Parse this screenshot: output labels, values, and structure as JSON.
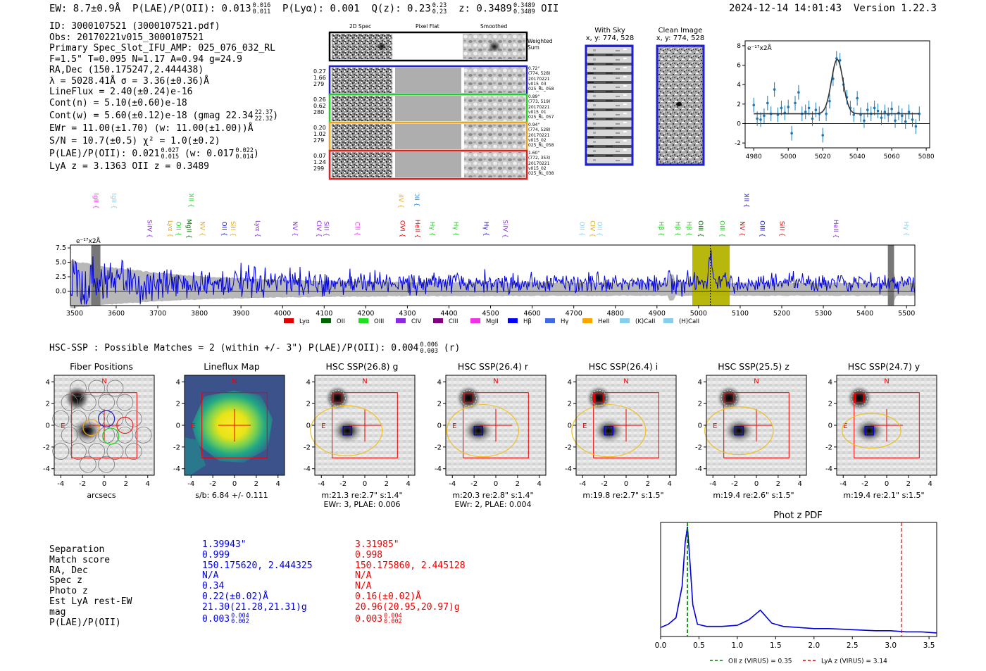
{
  "header": {
    "ew": "EW: 8.7±0.9Å",
    "plae_label": "P(LAE)/P(OII): 0.013",
    "plae_hi": "0.016",
    "plae_lo": "0.011",
    "plya": "P(Lyα): 0.001",
    "qz_label": "Q(z): 0.23",
    "qz_hi": "0.23",
    "qz_lo": "0.23",
    "z_label": "z: 0.3489",
    "z_hi": "0.3489",
    "z_lo": "0.3489",
    "z_line": "OII",
    "timestamp": "2024-12-14 14:01:43",
    "version": "Version 1.22.3"
  },
  "info": {
    "lines": [
      "ID: 3000107521 (3000107521.pdf)",
      "Obs: 20170221v015_3000107521",
      "Primary Spec_Slot_IFU_AMP: 025_076_032_RL",
      "F=1.5\"  T=0.095  N=1.17  A=0.94  g=24.9",
      "RA,Dec (150.175247,2.444438)",
      "λ = 5028.41Å  σ = 3.36(±0.36)Å",
      "LineFlux = 2.40(±0.24)e-16",
      "Cont(n) = 5.10(±0.60)e-18"
    ],
    "contw": "Cont(w) = 5.60(±0.12)e-18 (gmag 22.34",
    "contw_hi": "22.37",
    "contw_lo": "22.32",
    "ewr": "EWr = 11.00(±1.70) (w: 11.00(±1.00))Å",
    "sn": "S/N = 10.7(±0.5)  χ² = 1.0(±0.2)",
    "plae": "P(LAE)/P(OII): 0.021",
    "plae_hi": "0.027",
    "plae_lo": "0.015",
    "plae_w": "(w: 0.017",
    "plae_w_hi": "0.022",
    "plae_w_lo": "0.014",
    "lya": "LyA z = 3.1363  OII z = 0.3489"
  },
  "cutouts": {
    "col_titles": [
      "2D Spec",
      "Pixel Flat",
      "Smoothed"
    ],
    "weighted_sum": "Weighted Sum",
    "rows": [
      {
        "left": [
          "0.27",
          "1.66",
          "279"
        ],
        "right": [
          "0.72\"",
          "(774, 528)",
          "20170221",
          "v015_03",
          "025_RL_058"
        ],
        "color": "#1f1fd0"
      },
      {
        "left": [
          "0.26",
          "0.62",
          "280"
        ],
        "right": [
          "0.89\"",
          "(773, 519)",
          "20170221",
          "v015_01",
          "025_RL_057"
        ],
        "color": "#22cc22"
      },
      {
        "left": [
          "0.20",
          "1.02",
          "279"
        ],
        "right": [
          "0.94\"",
          "(774, 528)",
          "20170221",
          "v015_02",
          "025_RL_058"
        ],
        "color": "#f0a020"
      },
      {
        "left": [
          "0.07",
          "1.24",
          "299"
        ],
        "right": [
          "1.60\"",
          "(772, 353)",
          "20170221",
          "v015_02",
          "025_RL_038"
        ],
        "color": "#e02020"
      }
    ],
    "with_sky": "With Sky",
    "with_sky_xy": "x, y: 774, 528",
    "clean": "Clean Image",
    "clean_xy": "x, y: 774, 528"
  },
  "line_fit": {
    "unit": "e⁻¹⁷x2Å",
    "x_ticks": [
      "4980",
      "5000",
      "5020",
      "5040",
      "5060",
      "5080"
    ],
    "y_ticks": [
      "8",
      "6",
      "4",
      "2",
      "0",
      "-2"
    ],
    "xlim": [
      4975,
      5082
    ],
    "ylim": [
      -2.5,
      8.5
    ],
    "gauss": {
      "center": 5028.4,
      "sigma": 3.36,
      "amp": 5.6,
      "base": 1.0
    },
    "points_x": [
      4980,
      4982,
      4984,
      4986,
      4988,
      4990,
      4992,
      4994,
      4996,
      4998,
      5000,
      5002,
      5004,
      5006,
      5008,
      5010,
      5012,
      5014,
      5016,
      5018,
      5020,
      5022,
      5024,
      5026,
      5028,
      5030,
      5032,
      5034,
      5036,
      5038,
      5040,
      5042,
      5044,
      5046,
      5048,
      5050,
      5052,
      5054,
      5056,
      5058,
      5060,
      5062,
      5064,
      5066,
      5068,
      5070,
      5072,
      5074,
      5076
    ],
    "points_y": [
      1.9,
      0.5,
      0.4,
      0.8,
      2.1,
      1.0,
      3.5,
      0.9,
      1.6,
      1.1,
      1.7,
      -1.0,
      2.1,
      3.2,
      1.0,
      1.2,
      1.6,
      0.5,
      1.4,
      1.0,
      -1.2,
      1.0,
      2.3,
      4.6,
      6.7,
      6.5,
      4.0,
      2.7,
      1.6,
      0.9,
      2.6,
      0.9,
      0.3,
      1.4,
      1.0,
      1.6,
      1.3,
      0.6,
      1.2,
      0.9,
      1.5,
      0.3,
      1.1,
      0.8,
      0.2,
      1.2,
      0.4,
      -0.3,
      1.0
    ]
  },
  "spectrum": {
    "unit": "e⁻¹⁷x2Å",
    "xlim": [
      3490,
      5520
    ],
    "ylim": [
      -2.5,
      8.0
    ],
    "x_ticks": [
      "3500",
      "3600",
      "3700",
      "3800",
      "3900",
      "4000",
      "4100",
      "4200",
      "4300",
      "4400",
      "4500",
      "4600",
      "4700",
      "4800",
      "4900",
      "5000",
      "5100",
      "5200",
      "5300",
      "5400",
      "5500"
    ],
    "y_ticks": [
      "7.5",
      "5.0",
      "2.5",
      "0.0"
    ],
    "highlight_range": [
      4985,
      5075
    ],
    "line_center": 5028.4,
    "line_labels": [
      {
        "t": "MgII",
        "x": 3547,
        "c": "#f032e6",
        "hi": true
      },
      {
        "t": "MgII",
        "x": 3590,
        "c": "#87ceeb",
        "hi": true
      },
      {
        "t": "SiIV",
        "x": 3675,
        "c": "#8a2be2",
        "hi": false
      },
      {
        "t": "Lyα",
        "x": 3725,
        "c": "#e6a817",
        "hi": false
      },
      {
        "t": "OII",
        "x": 3745,
        "c": "#22cc22",
        "hi": false
      },
      {
        "t": "MgII",
        "x": 3770,
        "c": "#006400",
        "hi": false
      },
      {
        "t": "OIII",
        "x": 3775,
        "c": "#22cc22",
        "hi": true
      },
      {
        "t": "NV",
        "x": 3802,
        "c": "#e6a817",
        "hi": false
      },
      {
        "t": "OII",
        "x": 3855,
        "c": "#1010c0",
        "hi": false
      },
      {
        "t": "SiII",
        "x": 3876,
        "c": "#e6a817",
        "hi": false
      },
      {
        "t": "Lyα",
        "x": 3935,
        "c": "#8a2be2",
        "hi": false
      },
      {
        "t": "NV",
        "x": 4025,
        "c": "#8a2be2",
        "hi": false
      },
      {
        "t": "CIV",
        "x": 4083,
        "c": "#8a2be2",
        "hi": false
      },
      {
        "t": "SiII",
        "x": 4100,
        "c": "#8a2be2",
        "hi": false
      },
      {
        "t": "CII",
        "x": 4175,
        "c": "#f032e6",
        "hi": false
      },
      {
        "t": "SiIV",
        "x": 4280,
        "c": "#e6a817",
        "hi": true
      },
      {
        "t": "OVI",
        "x": 4283,
        "c": "#e00000",
        "hi": false
      },
      {
        "t": "OII",
        "x": 4318,
        "c": "#1e90ff",
        "hi": true
      },
      {
        "t": "HeII",
        "x": 4320,
        "c": "#e00000",
        "hi": false
      },
      {
        "t": "Hγ",
        "x": 4355,
        "c": "#22cc22",
        "hi": false
      },
      {
        "t": "Hγ",
        "x": 4412,
        "c": "#22cc22",
        "hi": false
      },
      {
        "t": "Hγ",
        "x": 4485,
        "c": "#1010c0",
        "hi": false
      },
      {
        "t": "SiIV",
        "x": 4530,
        "c": "#8a2be2",
        "hi": false
      },
      {
        "t": "OII",
        "x": 4715,
        "c": "#87ceeb",
        "hi": false
      },
      {
        "t": "CIV",
        "x": 4740,
        "c": "#e6a817",
        "hi": false
      },
      {
        "t": "OII",
        "x": 4757,
        "c": "#87ceeb",
        "hi": false
      },
      {
        "t": "Hβ",
        "x": 4905,
        "c": "#22cc22",
        "hi": false
      },
      {
        "t": "Hβ",
        "x": 4945,
        "c": "#22cc22",
        "hi": false
      },
      {
        "t": "Hβ",
        "x": 4972,
        "c": "#22cc22",
        "hi": false
      },
      {
        "t": "OIII",
        "x": 5000,
        "c": "#006400",
        "hi": false
      },
      {
        "t": "OIII",
        "x": 5052,
        "c": "#22cc22",
        "hi": false
      },
      {
        "t": "NV",
        "x": 5100,
        "c": "#e00000",
        "hi": false
      },
      {
        "t": "OIII",
        "x": 5110,
        "c": "#1010c0",
        "hi": true
      },
      {
        "t": "OIII",
        "x": 5148,
        "c": "#1010c0",
        "hi": false
      },
      {
        "t": "SiII",
        "x": 5196,
        "c": "#e00000",
        "hi": false
      },
      {
        "t": "HeII",
        "x": 5325,
        "c": "#8a2be2",
        "hi": false
      },
      {
        "t": "Hγ",
        "x": 5495,
        "c": "#87ceeb",
        "hi": false
      }
    ],
    "legend": [
      {
        "t": "Lyα",
        "c": "#e00000"
      },
      {
        "t": "OII",
        "c": "#006400"
      },
      {
        "t": "OIII",
        "c": "#22dd22"
      },
      {
        "t": "CIV",
        "c": "#8a2be2"
      },
      {
        "t": "CIII",
        "c": "#800080"
      },
      {
        "t": "MgII",
        "c": "#f032e6"
      },
      {
        "t": "Hβ",
        "c": "#0000ff"
      },
      {
        "t": "Hγ",
        "c": "#4169e1"
      },
      {
        "t": "HeII",
        "c": "#ffa500"
      },
      {
        "t": "(K)CaII",
        "c": "#87ceeb"
      },
      {
        "t": "(H)CaII",
        "c": "#87ceeb"
      }
    ]
  },
  "hsc": {
    "summary": "HSC-SSP : Possible Matches = 2 (within +/- 3\")  P(LAE)/P(OII): 0.004",
    "summary_hi": "0.006",
    "summary_lo": "0.003",
    "summary_band": "(r)",
    "axis_ticks_y": [
      "4",
      "2",
      "0",
      "-2",
      "-4"
    ],
    "axis_ticks_x": [
      "-4",
      "-2",
      "0",
      "2",
      "4"
    ],
    "north": "N",
    "east": "E",
    "panels": [
      {
        "title": "Fiber Positions",
        "cap1": "arcsecs",
        "cap2": "",
        "kind": "fiber"
      },
      {
        "title": "Lineflux Map",
        "cap1": "s/b: 6.84 +/- 0.111",
        "cap2": "",
        "kind": "flux"
      },
      {
        "title": "HSC SSP(26.8) g",
        "cap1": "m:21.3  re:2.7\"  s:1.4\"",
        "cap2": "EWr: 3, PLAE: 0.006",
        "kind": "hsc"
      },
      {
        "title": "HSC SSP(26.4) r",
        "cap1": "m:20.3  re:2.8\"  s:1.4\"",
        "cap2": "EWr: 2, PLAE: 0.004",
        "kind": "hsc"
      },
      {
        "title": "HSC SSP(26.4) i",
        "cap1": "m:19.8  re:2.7\"  s:1.5\"",
        "cap2": "",
        "kind": "hsc"
      },
      {
        "title": "HSC SSP(25.5) z",
        "cap1": "m:19.4  re:2.6\"  s:1.5\"",
        "cap2": "",
        "kind": "hsc"
      },
      {
        "title": "HSC SSP(24.7) y",
        "cap1": "m:19.4  re:2.1\"  s:1.5\"",
        "cap2": "",
        "kind": "hsc"
      }
    ]
  },
  "matches": {
    "labels": [
      "Separation",
      "Match score",
      "RA, Dec",
      "Spec z",
      "Photo z",
      "Est LyA rest-EW",
      "mag",
      "P(LAE)/P(OII)"
    ],
    "match1": {
      "color": "#0000ee",
      "values": [
        "1.39943\"",
        "0.999",
        "150.175620, 2.444325",
        "N/A",
        "0.34",
        "0.22(±0.02)Å",
        "21.30(21.28,21.31)g",
        "0.003"
      ],
      "plae_hi": "0.004",
      "plae_lo": "0.002"
    },
    "match2": {
      "color": "#ee0000",
      "values": [
        "3.31985\"",
        "0.998",
        "150.175860, 2.445128",
        "N/A",
        "N/A",
        "0.16(±0.02)Å",
        "20.96(20.95,20.97)g",
        "0.003"
      ],
      "plae_hi": "0.004",
      "plae_lo": "0.002"
    }
  },
  "photz": {
    "title": "Phot z PDF",
    "x_ticks": [
      "0.0",
      "0.5",
      "1.0",
      "1.5",
      "2.0",
      "2.5",
      "3.0",
      "3.5"
    ],
    "xlim": [
      0,
      3.6
    ],
    "oii_z": 0.35,
    "lya_z": 3.14,
    "legend_oii": "OII z (VIRUS) = 0.35",
    "legend_lya": "LyA z (VIRUS) = 3.14",
    "pdf_x": [
      0.0,
      0.1,
      0.2,
      0.28,
      0.32,
      0.35,
      0.38,
      0.42,
      0.48,
      0.6,
      0.8,
      1.0,
      1.15,
      1.25,
      1.3,
      1.35,
      1.45,
      1.6,
      1.8,
      2.0,
      2.2,
      2.5,
      2.8,
      3.0,
      3.2,
      3.4,
      3.6
    ],
    "pdf_y": [
      0.07,
      0.1,
      0.16,
      0.45,
      0.85,
      1.0,
      0.7,
      0.28,
      0.1,
      0.08,
      0.08,
      0.09,
      0.14,
      0.2,
      0.23,
      0.19,
      0.11,
      0.08,
      0.07,
      0.06,
      0.06,
      0.05,
      0.04,
      0.04,
      0.03,
      0.03,
      0.02
    ]
  }
}
